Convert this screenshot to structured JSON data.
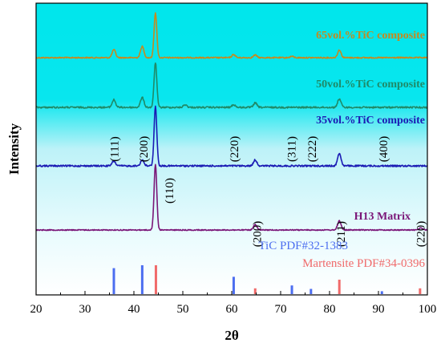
{
  "chart_data": {
    "type": "line",
    "xlabel": "2θ",
    "ylabel": "Intensity",
    "xlim": [
      20,
      100
    ],
    "x_ticks": [
      "20",
      "30",
      "40",
      "50",
      "60",
      "70",
      "80",
      "90",
      "100"
    ],
    "grid": false,
    "series": [
      {
        "name": "65vol.%TiC composite",
        "color": "#c58a1e",
        "baseline_color": "#00e5ee",
        "peaks": [
          {
            "x": 35.9,
            "h": 0.18
          },
          {
            "x": 41.7,
            "h": 0.25
          },
          {
            "x": 44.4,
            "h": 1.0
          },
          {
            "x": 60.4,
            "h": 0.07
          },
          {
            "x": 64.8,
            "h": 0.06
          },
          {
            "x": 72.3,
            "h": 0.03
          },
          {
            "x": 82.0,
            "h": 0.17
          }
        ]
      },
      {
        "name": "50vol.%TiC composite",
        "color": "#1f8a68",
        "baseline_color": "#00e5ee",
        "peaks": [
          {
            "x": 35.9,
            "h": 0.17
          },
          {
            "x": 41.7,
            "h": 0.22
          },
          {
            "x": 44.4,
            "h": 1.0
          },
          {
            "x": 50.5,
            "h": 0.06
          },
          {
            "x": 60.4,
            "h": 0.06
          },
          {
            "x": 64.8,
            "h": 0.1
          },
          {
            "x": 82.0,
            "h": 0.19
          }
        ]
      },
      {
        "name": "35vol.%TiC composite",
        "color": "#1a1ab4",
        "baseline_color": "#1a1ab4",
        "peaks": [
          {
            "x": 35.9,
            "h": 0.08
          },
          {
            "x": 41.7,
            "h": 0.1
          },
          {
            "x": 44.4,
            "h": 1.0
          },
          {
            "x": 64.8,
            "h": 0.1
          },
          {
            "x": 82.0,
            "h": 0.21
          }
        ]
      },
      {
        "name": "H13 Matrix",
        "color": "#7a1678",
        "baseline_color": "#7a1678",
        "peaks": [
          {
            "x": 44.4,
            "h": 1.0
          },
          {
            "x": 64.8,
            "h": 0.08
          },
          {
            "x": 82.0,
            "h": 0.14
          },
          {
            "x": 98.7,
            "h": 0.03
          }
        ]
      }
    ],
    "peak_labels": [
      {
        "text": "(111)",
        "x": 36
      },
      {
        "text": "(200)",
        "x": 42
      },
      {
        "text": "(220)",
        "x": 60.5
      },
      {
        "text": "(311)",
        "x": 72.2
      },
      {
        "text": "(222)",
        "x": 76.4
      },
      {
        "text": "(400)",
        "x": 91
      },
      {
        "text": "(110)",
        "x": 47.2
      },
      {
        "text": "(200)",
        "x": 65.2
      },
      {
        "text": "(211)",
        "x": 82.3
      },
      {
        "text": "(220)",
        "x": 98.6
      }
    ],
    "references": [
      {
        "name": "TiC PDF#32-1383",
        "color": "#4c6ef0",
        "lines": [
          {
            "x": 35.9,
            "h": 0.9
          },
          {
            "x": 41.7,
            "h": 1.0
          },
          {
            "x": 60.4,
            "h": 0.6
          },
          {
            "x": 72.3,
            "h": 0.3
          },
          {
            "x": 76.2,
            "h": 0.18
          },
          {
            "x": 90.7,
            "h": 0.1
          }
        ]
      },
      {
        "name": "Martensite PDF#34-0396",
        "color": "#f06a6a",
        "lines": [
          {
            "x": 44.5,
            "h": 1.0
          },
          {
            "x": 64.8,
            "h": 0.2
          },
          {
            "x": 82.0,
            "h": 0.5
          },
          {
            "x": 98.5,
            "h": 0.2
          }
        ]
      }
    ]
  }
}
